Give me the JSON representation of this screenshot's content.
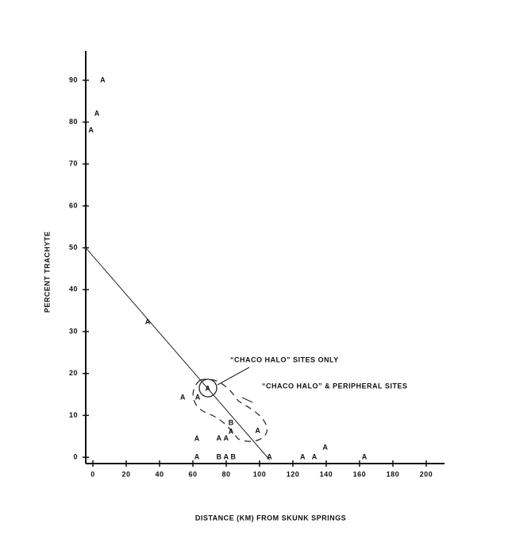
{
  "chart_data": {
    "type": "scatter",
    "x_label": "DISTANCE (KM) FROM SKUNK SPRINGS",
    "y_label": "PERCENT TRACHYTE",
    "xlim": [
      -4.3,
      211
    ],
    "ylim": [
      -1.5,
      97
    ],
    "xticks": [
      0,
      20,
      40,
      60,
      80,
      100,
      120,
      140,
      160,
      180,
      200
    ],
    "yticks": [
      0,
      10,
      20,
      30,
      40,
      50,
      60,
      70,
      80,
      90
    ],
    "points": {
      "x": [
        6,
        2.5,
        -1,
        33,
        54,
        63,
        69,
        62.5,
        62.5,
        75.7,
        80,
        83,
        83,
        99,
        75.7,
        80,
        84.3,
        106,
        126,
        133,
        139.5,
        163
      ],
      "y": [
        90,
        82,
        78,
        32.3,
        14.2,
        14.2,
        16.3,
        4.4,
        0,
        4.5,
        4.5,
        8.2,
        6.1,
        6.3,
        0,
        0,
        0,
        0,
        0,
        0,
        2.3,
        0
      ],
      "labels": [
        "A",
        "A",
        "A",
        "A",
        "A",
        "A",
        "A",
        "A",
        "A",
        "A",
        "A",
        "B",
        "A",
        "A",
        "B",
        "A",
        "B",
        "A",
        "A",
        "A",
        "A",
        "A"
      ]
    },
    "line": {
      "x": [
        -4.3,
        106
      ],
      "y": [
        50,
        -0.6
      ]
    },
    "annotations": [
      "“CHACO HALO” SITES ONLY",
      "“CHACO HALO” & PERIPHERAL SITES"
    ]
  }
}
